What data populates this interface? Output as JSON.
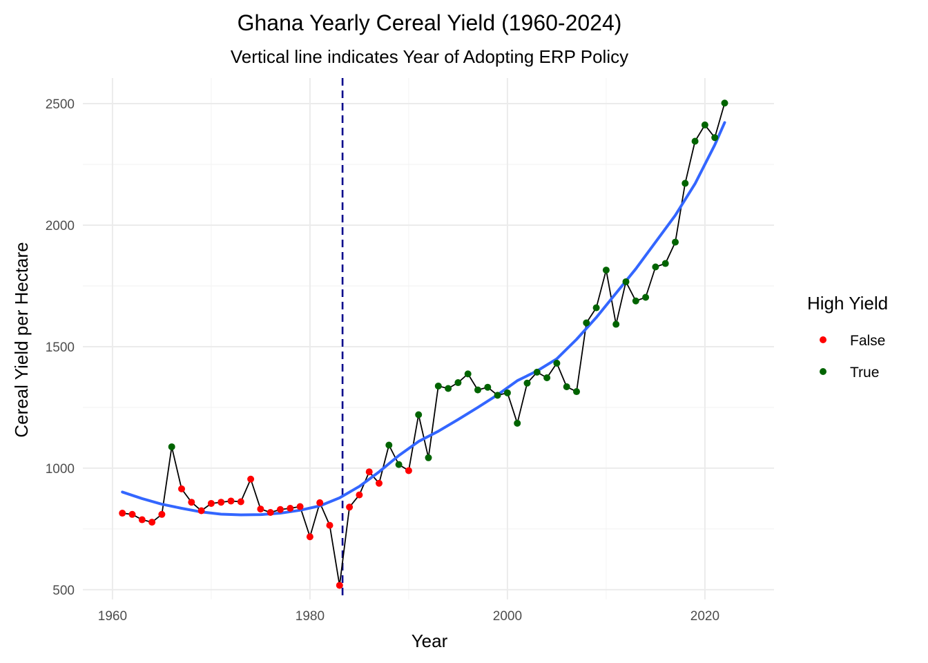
{
  "chart_data": {
    "type": "scatter",
    "title": "Ghana Yearly Cereal Yield (1960-2024)",
    "subtitle": "Vertical line indicates Year of Adopting ERP Policy",
    "xlabel": "Year",
    "ylabel": "Cereal Yield per Hectare",
    "xlim": [
      1957,
      2027
    ],
    "ylim": [
      460,
      2605
    ],
    "x_ticks": [
      1960,
      1980,
      2000,
      2020
    ],
    "y_ticks": [
      500,
      1000,
      1500,
      2000,
      2500
    ],
    "vline": {
      "x": 1983.3,
      "color": "#00008b",
      "style": "dashed"
    },
    "legend": {
      "title": "High Yield",
      "position": "right",
      "entries": [
        {
          "label": "False",
          "color": "#ff0000"
        },
        {
          "label": "True",
          "color": "#006400"
        }
      ]
    },
    "connecting_line_color": "#000000",
    "trend_color": "#3366ff",
    "series": [
      {
        "name": "False",
        "color": "#ff0000",
        "points": [
          [
            1961,
            815
          ],
          [
            1962,
            810
          ],
          [
            1963,
            788
          ],
          [
            1964,
            778
          ],
          [
            1965,
            810
          ],
          [
            1967,
            915
          ],
          [
            1968,
            860
          ],
          [
            1969,
            825
          ],
          [
            1970,
            855
          ],
          [
            1971,
            860
          ],
          [
            1972,
            865
          ],
          [
            1973,
            862
          ],
          [
            1974,
            955
          ],
          [
            1975,
            832
          ],
          [
            1976,
            818
          ],
          [
            1977,
            830
          ],
          [
            1978,
            835
          ],
          [
            1979,
            842
          ],
          [
            1980,
            718
          ],
          [
            1981,
            858
          ],
          [
            1982,
            765
          ],
          [
            1983,
            518
          ],
          [
            1984,
            840
          ],
          [
            1985,
            890
          ],
          [
            1986,
            985
          ],
          [
            1987,
            938
          ],
          [
            1990,
            990
          ]
        ]
      },
      {
        "name": "True",
        "color": "#006400",
        "points": [
          [
            1966,
            1088
          ],
          [
            1988,
            1095
          ],
          [
            1989,
            1015
          ],
          [
            1991,
            1220
          ],
          [
            1992,
            1043
          ],
          [
            1993,
            1338
          ],
          [
            1994,
            1328
          ],
          [
            1995,
            1352
          ],
          [
            1996,
            1388
          ],
          [
            1997,
            1322
          ],
          [
            1998,
            1333
          ],
          [
            1999,
            1300
          ],
          [
            2000,
            1310
          ],
          [
            2001,
            1185
          ],
          [
            2002,
            1350
          ],
          [
            2003,
            1395
          ],
          [
            2004,
            1372
          ],
          [
            2005,
            1432
          ],
          [
            2006,
            1335
          ],
          [
            2007,
            1315
          ],
          [
            2008,
            1598
          ],
          [
            2009,
            1660
          ],
          [
            2010,
            1815
          ],
          [
            2011,
            1592
          ],
          [
            2012,
            1767
          ],
          [
            2013,
            1688
          ],
          [
            2014,
            1703
          ],
          [
            2015,
            1828
          ],
          [
            2016,
            1842
          ],
          [
            2017,
            1930
          ],
          [
            2018,
            2172
          ],
          [
            2019,
            2345
          ],
          [
            2020,
            2412
          ],
          [
            2021,
            2360
          ],
          [
            2022,
            2502
          ]
        ]
      }
    ],
    "trend": [
      [
        1961,
        902
      ],
      [
        1963,
        875
      ],
      [
        1965,
        852
      ],
      [
        1967,
        835
      ],
      [
        1969,
        820
      ],
      [
        1971,
        811
      ],
      [
        1973,
        808
      ],
      [
        1975,
        809
      ],
      [
        1977,
        815
      ],
      [
        1979,
        827
      ],
      [
        1981,
        845
      ],
      [
        1983,
        878
      ],
      [
        1985,
        925
      ],
      [
        1987,
        985
      ],
      [
        1989,
        1052
      ],
      [
        1991,
        1110
      ],
      [
        1993,
        1152
      ],
      [
        1995,
        1200
      ],
      [
        1997,
        1250
      ],
      [
        1999,
        1302
      ],
      [
        2001,
        1360
      ],
      [
        2003,
        1400
      ],
      [
        2005,
        1450
      ],
      [
        2007,
        1530
      ],
      [
        2009,
        1620
      ],
      [
        2011,
        1720
      ],
      [
        2013,
        1820
      ],
      [
        2015,
        1930
      ],
      [
        2017,
        2040
      ],
      [
        2019,
        2170
      ],
      [
        2021,
        2330
      ],
      [
        2022,
        2422
      ]
    ]
  }
}
